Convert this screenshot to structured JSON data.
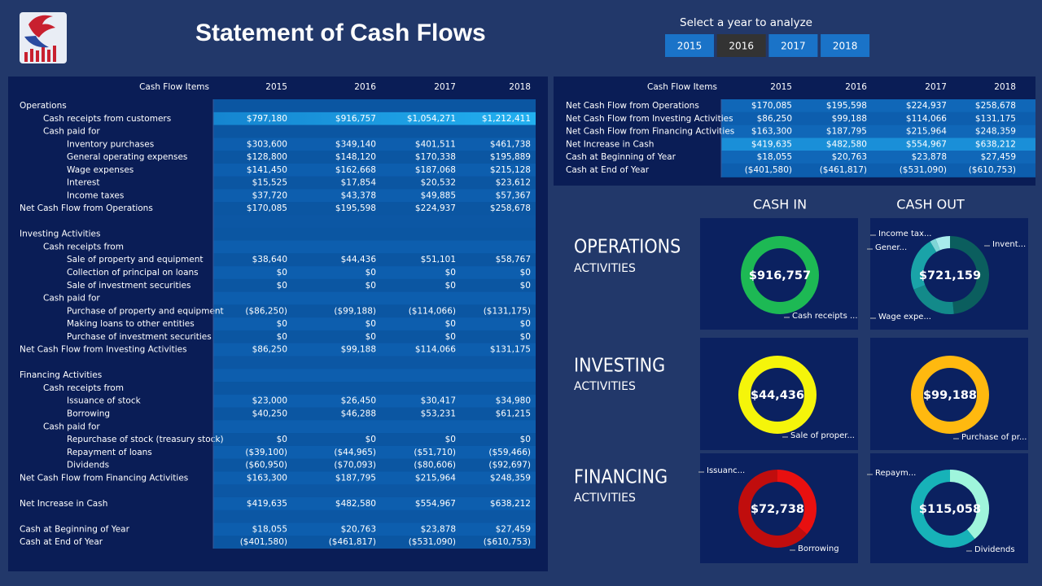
{
  "header": {
    "title": "Statement of Cash Flows"
  },
  "year_selector": {
    "label": "Select a year to analyze",
    "options": [
      "2015",
      "2016",
      "2017",
      "2018"
    ],
    "selected": "2016"
  },
  "main_table": {
    "columns": [
      "Cash Flow Items",
      "2015",
      "2016",
      "2017",
      "2018"
    ],
    "rows": [
      [
        "Operations"
      ],
      [
        "Cash receipts from customers",
        "$797,180",
        "$916,757",
        "$1,054,271",
        "$1,212,411"
      ],
      [
        "Cash paid for"
      ],
      [
        "Inventory purchases",
        "$303,600",
        "$349,140",
        "$401,511",
        "$461,738"
      ],
      [
        "General operating expenses",
        "$128,800",
        "$148,120",
        "$170,338",
        "$195,889"
      ],
      [
        "Wage expenses",
        "$141,450",
        "$162,668",
        "$187,068",
        "$215,128"
      ],
      [
        "Interest",
        "$15,525",
        "$17,854",
        "$20,532",
        "$23,612"
      ],
      [
        "Income taxes",
        "$37,720",
        "$43,378",
        "$49,885",
        "$57,367"
      ],
      [
        "Net Cash Flow from Operations",
        "$170,085",
        "$195,598",
        "$224,937",
        "$258,678"
      ],
      [
        "Investing Activities"
      ],
      [
        "Cash receipts from"
      ],
      [
        "Sale of property and equipment",
        "$38,640",
        "$44,436",
        "$51,101",
        "$58,767"
      ],
      [
        "Collection of principal on loans",
        "$0",
        "$0",
        "$0",
        "$0"
      ],
      [
        "Sale of investment securities",
        "$0",
        "$0",
        "$0",
        "$0"
      ],
      [
        "Cash paid for"
      ],
      [
        "Purchase of property and equipment",
        "($86,250)",
        "($99,188)",
        "($114,066)",
        "($131,175)"
      ],
      [
        "Making loans to other entities",
        "$0",
        "$0",
        "$0",
        "$0"
      ],
      [
        "Purchase of investment securities",
        "$0",
        "$0",
        "$0",
        "$0"
      ],
      [
        "Net Cash Flow from Investing Activities",
        "$86,250",
        "$99,188",
        "$114,066",
        "$131,175"
      ],
      [
        "Financing Activities"
      ],
      [
        "Cash receipts from"
      ],
      [
        "Issuance of stock",
        "$23,000",
        "$26,450",
        "$30,417",
        "$34,980"
      ],
      [
        "Borrowing",
        "$40,250",
        "$46,288",
        "$53,231",
        "$61,215"
      ],
      [
        "Cash paid for"
      ],
      [
        "Repurchase of stock (treasury stock)",
        "$0",
        "$0",
        "$0",
        "$0"
      ],
      [
        "Repayment of loans",
        "($39,100)",
        "($44,965)",
        "($51,710)",
        "($59,466)"
      ],
      [
        "Dividends",
        "($60,950)",
        "($70,093)",
        "($80,606)",
        "($92,697)"
      ],
      [
        "Net Cash Flow from Financing Activities",
        "$163,300",
        "$187,795",
        "$215,964",
        "$248,359"
      ],
      [
        "Net Increase in Cash",
        "$419,635",
        "$482,580",
        "$554,967",
        "$638,212"
      ],
      [
        "Cash at Beginning of Year",
        "$18,055",
        "$20,763",
        "$23,878",
        "$27,459"
      ],
      [
        "Cash at End of Year",
        "($401,580)",
        "($461,817)",
        "($531,090)",
        "($610,753)"
      ]
    ]
  },
  "summary_table": {
    "columns": [
      "Cash Flow Items",
      "2015",
      "2016",
      "2017",
      "2018"
    ],
    "rows": [
      [
        "Net Cash Flow from Operations",
        "$170,085",
        "$195,598",
        "$224,937",
        "$258,678"
      ],
      [
        "Net Cash Flow from Investing Activities",
        "$86,250",
        "$99,188",
        "$114,066",
        "$131,175"
      ],
      [
        "Net Cash Flow from Financing Activities",
        "$163,300",
        "$187,795",
        "$215,964",
        "$248,359"
      ],
      [
        "Net Increase in Cash",
        "$419,635",
        "$482,580",
        "$554,967",
        "$638,212"
      ],
      [
        "Cash at Beginning of Year",
        "$18,055",
        "$20,763",
        "$23,878",
        "$27,459"
      ],
      [
        "Cash at End of Year",
        "($401,580)",
        "($461,817)",
        "($531,090)",
        "($610,753)"
      ]
    ]
  },
  "donut_panel": {
    "cash_in_title": "CASH IN",
    "cash_out_title": "CASH OUT",
    "sections": [
      {
        "title": "OPERATIONS",
        "subtitle": "ACTIVITIES"
      },
      {
        "title": "INVESTING",
        "subtitle": "ACTIVITIES"
      },
      {
        "title": "FINANCING",
        "subtitle": "ACTIVITIES"
      }
    ]
  },
  "chart_data": [
    {
      "type": "pie",
      "center_label": "$916,757",
      "categories": [
        "Cash receipts ..."
      ],
      "values": [
        916757
      ],
      "colors": [
        "#1db954"
      ]
    },
    {
      "type": "pie",
      "center_label": "$721,159",
      "categories": [
        "Invent...",
        "Gener...",
        "Wage expe...",
        null,
        "Income tax..."
      ],
      "values": [
        349140,
        148120,
        162668,
        17854,
        43378
      ],
      "colors": [
        "#0b5e5e",
        "#138a8a",
        "#1aa3a8",
        "#7fd6d6",
        "#a8ecec"
      ]
    },
    {
      "type": "pie",
      "center_label": "$44,436",
      "categories": [
        "Sale of proper..."
      ],
      "values": [
        44436
      ],
      "colors": [
        "#f5f50a"
      ]
    },
    {
      "type": "pie",
      "center_label": "$99,188",
      "categories": [
        "Purchase of pr..."
      ],
      "values": [
        99188
      ],
      "colors": [
        "#ffb90f"
      ]
    },
    {
      "type": "pie",
      "center_label": "$72,738",
      "categories": [
        "Issuanc...",
        "Borrowing"
      ],
      "values": [
        26450,
        46288
      ],
      "colors": [
        "#e81010",
        "#c00d0d"
      ]
    },
    {
      "type": "pie",
      "center_label": "$115,058",
      "categories": [
        "Repaym...",
        "Dividends"
      ],
      "values": [
        44965,
        70093
      ],
      "colors": [
        "#9ff5dc",
        "#17b2b8"
      ]
    }
  ]
}
